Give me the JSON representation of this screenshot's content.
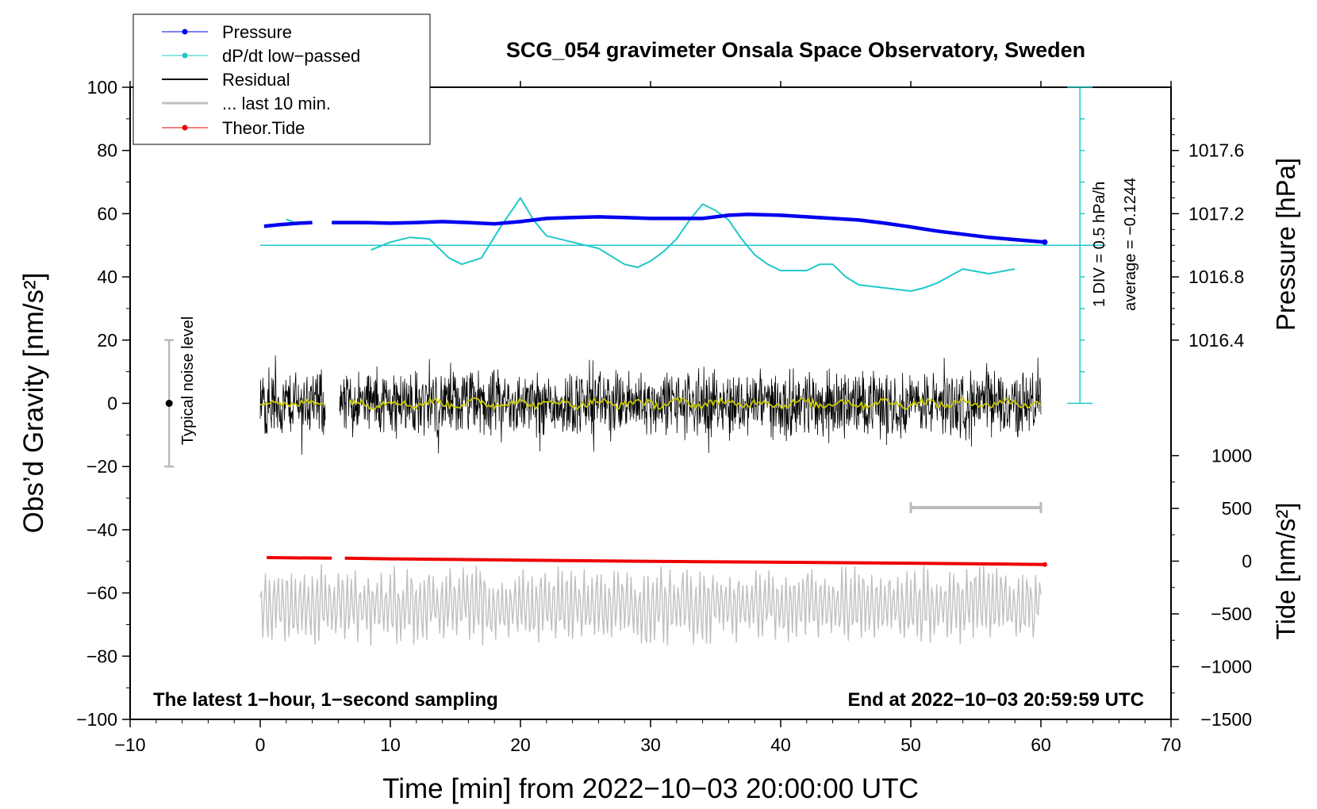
{
  "chart_data": {
    "type": "line",
    "title": "SCG_054 gravimeter Onsala Space Observatory, Sweden",
    "xlabel": "Time [min] from 2022−10−03 20:00:00 UTC",
    "ylabel_left": "Obs’d Gravity [nm/s²]",
    "ylabel_pressure": "Pressure [hPa]",
    "ylabel_tide": "Tide [nm/s²]",
    "xlim": [
      -10,
      70
    ],
    "ylim": [
      -100,
      100
    ],
    "x_ticks": [
      "−10",
      "0",
      "10",
      "20",
      "30",
      "40",
      "50",
      "60",
      "70"
    ],
    "y_ticks_left": [
      "−100",
      "−80",
      "−60",
      "−40",
      "−20",
      "0",
      "20",
      "40",
      "60",
      "80",
      "100"
    ],
    "pressure_ticks": [
      "1016.4",
      "1016.8",
      "1017.2",
      "1017.6"
    ],
    "tide_ticks": [
      "−1500",
      "−1000",
      "−500",
      "0",
      "500",
      "1000"
    ],
    "annotations": {
      "bottom_left": "The latest 1−hour, 1−second sampling",
      "bottom_right": "End at 2022−10−03 20:59:59 UTC",
      "noise_label": "Typical noise level",
      "div_label": "1 DIV = 0.5 hPa/h",
      "average_label": "average = −0.1244"
    },
    "legend": {
      "position": "top-left",
      "entries": [
        "Pressure",
        "dP/dt low−passed",
        "Residual",
        "... last 10 min.",
        "Theor.Tide"
      ]
    },
    "series": [
      {
        "name": "Pressure",
        "color": "#0000ee",
        "axis": "left",
        "x": [
          0.3,
          1.5,
          3,
          4,
          5.5,
          6.5,
          8,
          10,
          12,
          14,
          16,
          18,
          20,
          22,
          24,
          26,
          28,
          30,
          32,
          34,
          36,
          37.5,
          40,
          42,
          44,
          46,
          48,
          50,
          52,
          54,
          56,
          58,
          60.3
        ],
        "y": [
          56,
          56.5,
          57,
          57.2,
          57.2,
          57.2,
          57.2,
          57.0,
          57.2,
          57.5,
          57.2,
          56.8,
          57.5,
          58.5,
          58.8,
          59.0,
          58.8,
          58.5,
          58.5,
          58.5,
          59.5,
          59.8,
          59.5,
          59.0,
          58.5,
          58.0,
          57.0,
          55.8,
          54.5,
          53.5,
          52.5,
          51.8,
          51.0
        ]
      },
      {
        "name": "dP/dt low−passed",
        "color": "#20c8c8",
        "axis": "left",
        "x": [
          8.5,
          10,
          11.5,
          13,
          14.5,
          15.5,
          17,
          18.5,
          20,
          21,
          22,
          24,
          26,
          28,
          29,
          30,
          31,
          32,
          33,
          34,
          35,
          36,
          37,
          38,
          39,
          40,
          42,
          43,
          44,
          45,
          46,
          48,
          50,
          51,
          52,
          54,
          56,
          58
        ],
        "y": [
          48.5,
          51,
          52.5,
          52,
          46,
          44,
          46,
          56,
          65,
          58,
          53,
          51,
          49,
          44,
          43,
          45,
          48,
          52,
          58,
          63,
          61,
          58,
          52,
          47,
          44,
          42,
          42,
          44,
          44,
          40,
          37.5,
          36.5,
          35.5,
          36.5,
          38,
          42.5,
          41,
          42.5
        ]
      },
      {
        "name": "Theor.Tide",
        "color": "#ee0000",
        "axis": "left",
        "x": [
          0.5,
          5.5,
          6.5,
          10,
          20,
          30,
          40,
          50,
          60.3
        ],
        "y": [
          -48.8,
          -49.0,
          -49.0,
          -49.2,
          -49.6,
          -50.0,
          -50.3,
          -50.6,
          -51.0
        ]
      },
      {
        "name": "Residual",
        "color": "#000000",
        "axis": "left",
        "x_range": [
          0,
          60
        ],
        "y_center": 0,
        "approx_amplitude": 12
      },
      {
        "name": "Residual smoothed",
        "color": "#c8c800",
        "axis": "left",
        "x_range": [
          0,
          60
        ],
        "y_center": 0
      },
      {
        "name": "... last 10 min.",
        "color": "#c0c0c0",
        "axis": "left",
        "x_range": [
          0,
          60
        ],
        "y_center": -62,
        "approx_amplitude": 12
      }
    ],
    "noise_level": {
      "x": -7,
      "center": 0,
      "range": [
        -20,
        20
      ]
    },
    "zero_line": {
      "y": 50,
      "x_range": [
        0,
        65
      ]
    },
    "div_scale": {
      "x": 63,
      "y_range": [
        0,
        100
      ],
      "divisions": 10
    },
    "gray_bar": {
      "x_range": [
        50,
        60
      ],
      "y": -33
    }
  }
}
